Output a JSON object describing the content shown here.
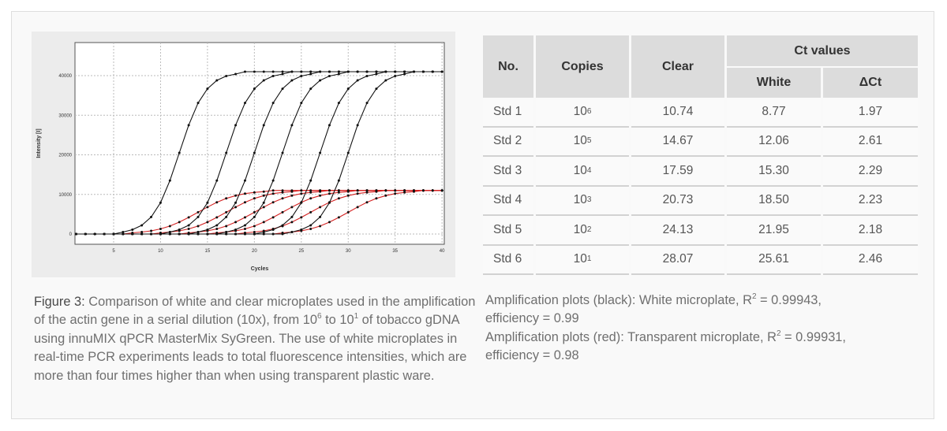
{
  "table": {
    "headers": {
      "no": "No.",
      "copies": "Copies",
      "clear": "Clear",
      "ct_values": "Ct values",
      "white": "White",
      "delta_ct": "ΔCt"
    },
    "rows": [
      {
        "no": "Std 1",
        "copies_base": "10",
        "copies_exp": "6",
        "clear": "10.74",
        "white": "8.77",
        "delta_ct": "1.97"
      },
      {
        "no": "Std 2",
        "copies_base": "10",
        "copies_exp": "5",
        "clear": "14.67",
        "white": "12.06",
        "delta_ct": "2.61"
      },
      {
        "no": "Std 3",
        "copies_base": "10",
        "copies_exp": "4",
        "clear": "17.59",
        "white": "15.30",
        "delta_ct": "2.29"
      },
      {
        "no": "Std 4",
        "copies_base": "10",
        "copies_exp": "3",
        "clear": "20.73",
        "white": "18.50",
        "delta_ct": "2.23"
      },
      {
        "no": "Std 5",
        "copies_base": "10",
        "copies_exp": "2",
        "clear": "24.13",
        "white": "21.95",
        "delta_ct": "2.18"
      },
      {
        "no": "Std 6",
        "copies_base": "10",
        "copies_exp": "1",
        "clear": "28.07",
        "white": "25.61",
        "delta_ct": "2.46"
      }
    ]
  },
  "caption": {
    "label": "Figure 3:",
    "t1": " Comparison of white and clear microplates used in the amplification of the actin gene in a serial dilution (10x), from 10",
    "sup1": "6",
    "t2": " to 10",
    "sup2": "1",
    "t3": " of tobacco gDNA using innuMIX qPCR MasterMix SyGreen. The use of white microplates in real-time PCR experiments leads to total fluorescence intensities, which are more than four times higher than when using transparent plastic ware."
  },
  "notes": {
    "line1_a": "Amplification plots (black): White microplate, R",
    "line1_sup": "2",
    "line1_b": " = 0.99943,",
    "line2": "efficiency = 0.99",
    "line3_a": "Amplification plots (red): Transparent microplate, R",
    "line3_sup": "2",
    "line3_b": " = 0.99931,",
    "line4": "efficiency = 0.98"
  },
  "chart_data": {
    "type": "line",
    "xlabel": "Cycles",
    "ylabel": "Intensity [I]",
    "xlim": [
      1,
      40
    ],
    "ylim": [
      -2000,
      47000
    ],
    "xticks": [
      5,
      10,
      15,
      20,
      25,
      30,
      35,
      40
    ],
    "yticks": [
      0,
      10000,
      20000,
      30000,
      40000
    ],
    "grid": true,
    "markers": true,
    "x": [
      1,
      2,
      3,
      4,
      5,
      6,
      7,
      8,
      9,
      10,
      11,
      12,
      13,
      14,
      15,
      16,
      17,
      18,
      19,
      20,
      21,
      22,
      23,
      24,
      25,
      26,
      27,
      28,
      29,
      30,
      31,
      32,
      33,
      34,
      35,
      36,
      37,
      38,
      39,
      40
    ],
    "series": [
      {
        "color": "#111111",
        "values": [
          0,
          0,
          0,
          0,
          0,
          500,
          1100,
          2200,
          4300,
          7900,
          13500,
          20500,
          27500,
          33100,
          36700,
          38800,
          39900,
          40400,
          41000,
          41000,
          41000,
          41000,
          41000,
          41000,
          41000,
          41000,
          41000,
          41000,
          41000,
          41000,
          41000,
          41000,
          41000,
          41000,
          41000,
          41000,
          41000,
          41000,
          41000,
          41000
        ]
      },
      {
        "color": "#111111",
        "values": [
          0,
          0,
          0,
          0,
          0,
          0,
          0,
          0,
          0,
          0,
          500,
          1100,
          2200,
          4300,
          7900,
          13500,
          20500,
          27500,
          33100,
          36700,
          38800,
          39900,
          40400,
          41000,
          41000,
          41000,
          41000,
          41000,
          41000,
          41000,
          41000,
          41000,
          41000,
          41000,
          41000,
          41000,
          41000,
          41000,
          41000,
          41000
        ]
      },
      {
        "color": "#111111",
        "values": [
          0,
          0,
          0,
          0,
          0,
          0,
          0,
          0,
          0,
          0,
          0,
          0,
          0,
          500,
          1100,
          2200,
          4300,
          7900,
          13500,
          20500,
          27500,
          33100,
          36700,
          38800,
          39900,
          40400,
          41000,
          41000,
          41000,
          41000,
          41000,
          41000,
          41000,
          41000,
          41000,
          41000,
          41000,
          41000,
          41000,
          41000
        ]
      },
      {
        "color": "#111111",
        "values": [
          0,
          0,
          0,
          0,
          0,
          0,
          0,
          0,
          0,
          0,
          0,
          0,
          0,
          0,
          0,
          0,
          500,
          1100,
          2200,
          4300,
          7900,
          13500,
          20500,
          27500,
          33100,
          36700,
          38800,
          39900,
          40400,
          41000,
          41000,
          41000,
          41000,
          41000,
          41000,
          41000,
          41000,
          41000,
          41000,
          41000
        ]
      },
      {
        "color": "#111111",
        "values": [
          0,
          0,
          0,
          0,
          0,
          0,
          0,
          0,
          0,
          0,
          0,
          0,
          0,
          0,
          0,
          0,
          0,
          0,
          0,
          0,
          500,
          1100,
          2200,
          4300,
          7900,
          13500,
          20500,
          27500,
          33100,
          36700,
          38800,
          39900,
          40400,
          41000,
          41000,
          41000,
          41000,
          41000,
          41000,
          41000
        ]
      },
      {
        "color": "#111111",
        "values": [
          0,
          0,
          0,
          0,
          0,
          0,
          0,
          0,
          0,
          0,
          0,
          0,
          0,
          0,
          0,
          0,
          0,
          0,
          0,
          0,
          0,
          0,
          0,
          500,
          1100,
          2200,
          4300,
          7900,
          13500,
          20500,
          27500,
          33100,
          36700,
          38800,
          39900,
          40400,
          41000,
          41000,
          41000,
          41000
        ]
      },
      {
        "color": "#d42020",
        "values": [
          0,
          0,
          0,
          0,
          0,
          0,
          300,
          500,
          800,
          1300,
          2000,
          3000,
          4200,
          5500,
          6800,
          8000,
          9000,
          9700,
          10200,
          10500,
          10700,
          11000,
          11000,
          11000,
          11000,
          11000,
          11000,
          11000,
          11000,
          11000,
          11000,
          11000,
          11000,
          11000,
          11000,
          11000,
          11000,
          11000,
          11000,
          11000
        ]
      },
      {
        "color": "#d42020",
        "values": [
          0,
          0,
          0,
          0,
          0,
          0,
          0,
          0,
          0,
          300,
          500,
          800,
          1300,
          2000,
          3000,
          4200,
          5500,
          6800,
          8000,
          9000,
          9700,
          10200,
          10500,
          10700,
          11000,
          11000,
          11000,
          11000,
          11000,
          11000,
          11000,
          11000,
          11000,
          11000,
          11000,
          11000,
          11000,
          11000,
          11000,
          11000
        ]
      },
      {
        "color": "#d42020",
        "values": [
          0,
          0,
          0,
          0,
          0,
          0,
          0,
          0,
          0,
          0,
          0,
          0,
          300,
          500,
          800,
          1300,
          2000,
          3000,
          4200,
          5500,
          6800,
          8000,
          9000,
          9700,
          10200,
          10500,
          10700,
          11000,
          11000,
          11000,
          11000,
          11000,
          11000,
          11000,
          11000,
          11000,
          11000,
          11000,
          11000,
          11000
        ]
      },
      {
        "color": "#d42020",
        "values": [
          0,
          0,
          0,
          0,
          0,
          0,
          0,
          0,
          0,
          0,
          0,
          0,
          0,
          0,
          0,
          300,
          500,
          800,
          1300,
          2000,
          3000,
          4200,
          5500,
          6800,
          8000,
          9000,
          9700,
          10200,
          10500,
          10700,
          11000,
          11000,
          11000,
          11000,
          11000,
          11000,
          11000,
          11000,
          11000,
          11000
        ]
      },
      {
        "color": "#d42020",
        "values": [
          0,
          0,
          0,
          0,
          0,
          0,
          0,
          0,
          0,
          0,
          0,
          0,
          0,
          0,
          0,
          0,
          0,
          0,
          300,
          500,
          800,
          1300,
          2000,
          3000,
          4200,
          5500,
          6800,
          8000,
          9000,
          9700,
          10200,
          10500,
          10700,
          11000,
          11000,
          11000,
          11000,
          11000,
          11000,
          11000
        ]
      },
      {
        "color": "#d42020",
        "values": [
          0,
          0,
          0,
          0,
          0,
          0,
          0,
          0,
          0,
          0,
          0,
          0,
          0,
          0,
          0,
          0,
          0,
          0,
          0,
          0,
          0,
          0,
          300,
          500,
          800,
          1300,
          2000,
          3000,
          4200,
          5500,
          6800,
          8000,
          9000,
          9700,
          10200,
          10500,
          10700,
          11000,
          11000,
          11000
        ]
      }
    ]
  }
}
